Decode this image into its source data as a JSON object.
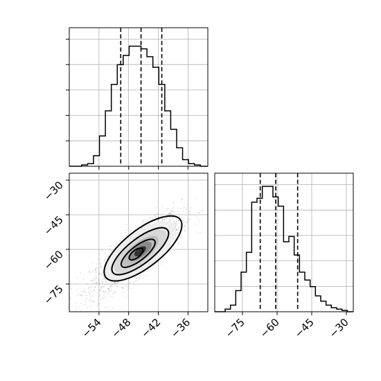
{
  "chart_data": [
    {
      "type": "histogram",
      "panel": "top-left",
      "parameter": "x",
      "xlim": [
        -60,
        -32
      ],
      "ylim": [
        0,
        1
      ],
      "grid": true,
      "bins": [
        -57.5,
        -56.3,
        -55.1,
        -53.9,
        -52.7,
        -51.5,
        -50.3,
        -49.1,
        -47.9,
        -46.7,
        -45.5,
        -44.3,
        -43.1,
        -41.9,
        -40.7,
        -39.5,
        -38.3,
        -37.1,
        -35.9,
        -34.7,
        -33.5
      ],
      "counts": [
        0.01,
        0.02,
        0.08,
        0.23,
        0.42,
        0.62,
        0.77,
        0.84,
        0.91,
        0.91,
        0.89,
        0.83,
        0.75,
        0.62,
        0.42,
        0.28,
        0.14,
        0.05,
        0.02,
        0.01
      ],
      "quantiles": [
        -49.6,
        -45.5,
        -41.3
      ]
    },
    {
      "type": "scatter-density",
      "panel": "bottom-left",
      "x_parameter": "x",
      "y_parameter": "y",
      "xlim": [
        -60,
        -32
      ],
      "ylim": [
        -87,
        -27
      ],
      "xticks": [
        "−54",
        "−48",
        "−42",
        "−36"
      ],
      "yticks": [
        "−30",
        "−45",
        "−60",
        "−75"
      ],
      "grid": true,
      "peak": [
        -46.5,
        -62
      ],
      "contour_levels": 4
    },
    {
      "type": "histogram",
      "panel": "bottom-right",
      "parameter": "y",
      "xlim": [
        -87,
        -27
      ],
      "ylim": [
        0,
        1
      ],
      "grid": true,
      "xticks": [
        "−75",
        "−60",
        "−45",
        "−30"
      ],
      "bins": [
        -82.5,
        -80.2,
        -77.9,
        -75.6,
        -73.3,
        -71.0,
        -68.7,
        -66.4,
        -64.1,
        -61.8,
        -59.5,
        -57.2,
        -54.9,
        -52.6,
        -50.3,
        -48.0,
        -45.7,
        -43.4,
        -41.1,
        -38.8,
        -36.5,
        -34.2,
        -31.9,
        -29.6
      ],
      "counts": [
        0.02,
        0.05,
        0.16,
        0.3,
        0.45,
        0.83,
        0.86,
        0.95,
        0.95,
        0.87,
        0.8,
        0.53,
        0.57,
        0.43,
        0.3,
        0.24,
        0.19,
        0.12,
        0.08,
        0.05,
        0.03,
        0.02,
        0.01
      ],
      "quantiles": [
        -67.3,
        -60.6,
        -51.1
      ]
    }
  ]
}
